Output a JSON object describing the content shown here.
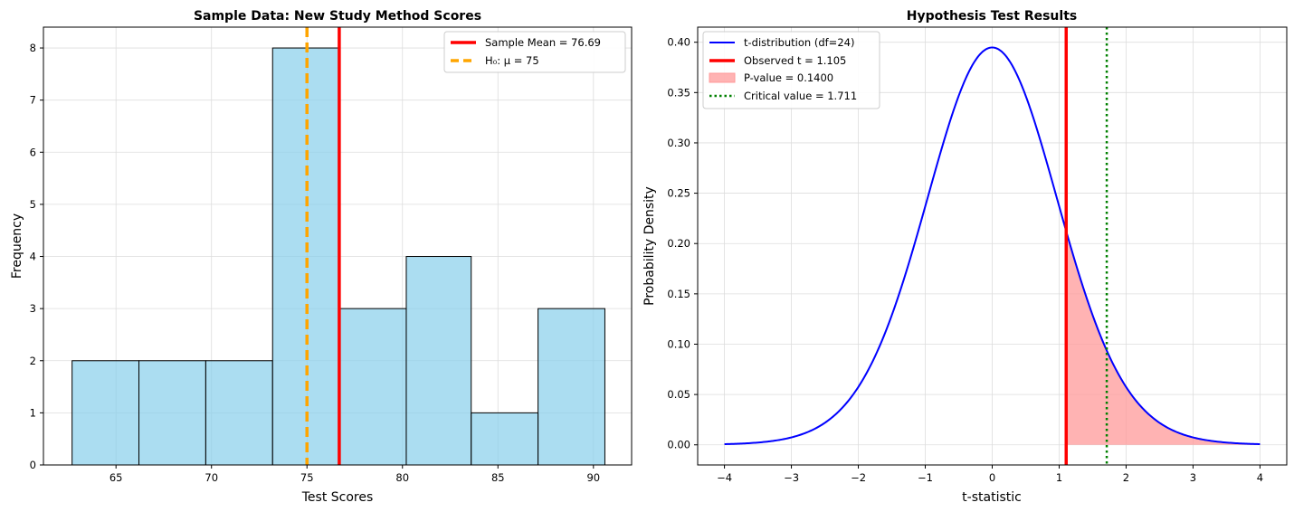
{
  "chart_data": [
    {
      "type": "bar",
      "subtype": "histogram",
      "title": "Sample Data: New Study Method Scores",
      "xlabel": "Test Scores",
      "ylabel": "Frequency",
      "xlim": [
        61.2,
        92.0
      ],
      "ylim": [
        0,
        8.4
      ],
      "xticks": [
        65,
        70,
        75,
        80,
        85,
        90
      ],
      "yticks": [
        0,
        1,
        2,
        3,
        4,
        5,
        6,
        7,
        8
      ],
      "bin_edges": [
        62.7,
        66.2,
        69.7,
        73.2,
        76.7,
        80.2,
        83.6,
        87.1,
        90.6
      ],
      "values": [
        2,
        2,
        2,
        8,
        3,
        4,
        1,
        3
      ],
      "bar_color": "#87CEEB",
      "lines": [
        {
          "label": "Sample Mean = 76.69",
          "x": 76.69,
          "color": "#ff0000",
          "style": "solid"
        },
        {
          "label": "H₀: μ = 75",
          "x": 75,
          "color": "#ffa500",
          "style": "dashed"
        }
      ],
      "legend_position": "upper right",
      "grid": true
    },
    {
      "type": "line",
      "title": "Hypothesis Test Results",
      "xlabel": "t-statistic",
      "ylabel": "Probability Density",
      "xlim": [
        -4.4,
        4.4
      ],
      "ylim": [
        -0.02,
        0.415
      ],
      "xticks": [
        -4,
        -3,
        -2,
        -1,
        0,
        1,
        2,
        3,
        4
      ],
      "yticks": [
        "0.00",
        "0.05",
        "0.10",
        "0.15",
        "0.20",
        "0.25",
        "0.30",
        "0.35",
        "0.40"
      ],
      "series": [
        {
          "name": "t-distribution (df=24)",
          "color": "#0000ff",
          "df": 24,
          "x_range": [
            -4,
            4
          ]
        }
      ],
      "observed_t": {
        "label": "Observed t = 1.105",
        "x": 1.105,
        "color": "#ff0000"
      },
      "p_value_area": {
        "label": "P-value = 0.1400",
        "from": 1.105,
        "to": 4,
        "color": "#ff9999"
      },
      "critical_value": {
        "label": "Critical value = 1.711",
        "x": 1.711,
        "color": "#008000"
      },
      "legend_position": "upper left",
      "grid": true
    }
  ]
}
